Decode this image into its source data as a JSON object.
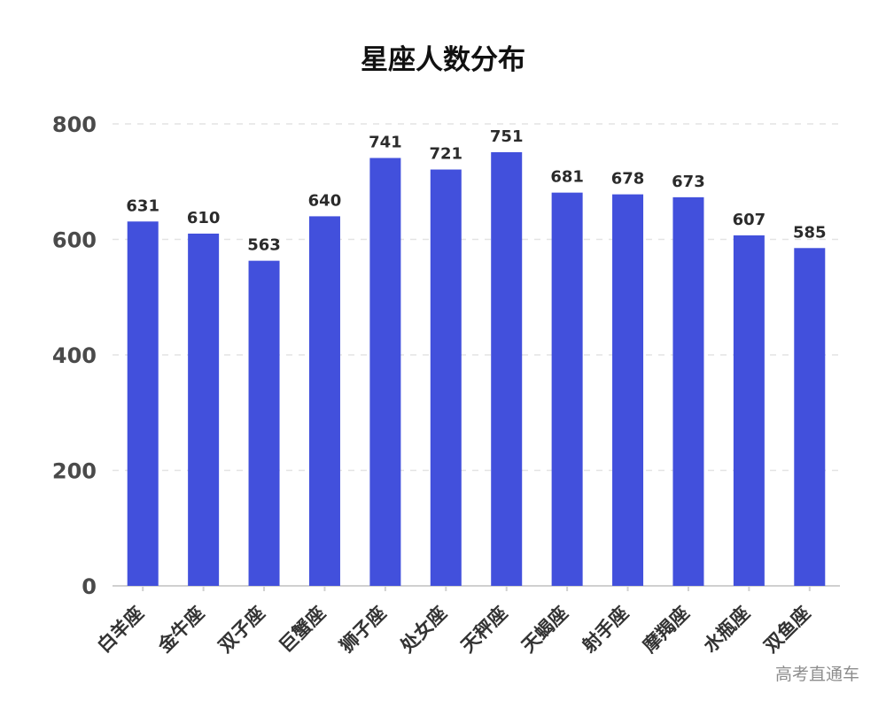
{
  "chart_data": {
    "type": "bar",
    "title": "星座人数分布",
    "categories": [
      "白羊座",
      "金牛座",
      "双子座",
      "巨蟹座",
      "狮子座",
      "处女座",
      "天秤座",
      "天蝎座",
      "射手座",
      "摩羯座",
      "水瓶座",
      "双鱼座"
    ],
    "values": [
      631,
      610,
      563,
      640,
      741,
      721,
      751,
      681,
      678,
      673,
      607,
      585
    ],
    "ylim": [
      0,
      800
    ],
    "yticks": [
      0,
      200,
      400,
      600,
      800
    ],
    "grid": true,
    "data_labels": true,
    "colors": {
      "bar": "#4250dc",
      "grid": "#e3e3e3",
      "axis": "#d0d0d0",
      "text": "#222222"
    }
  },
  "watermark": "高考直通车"
}
